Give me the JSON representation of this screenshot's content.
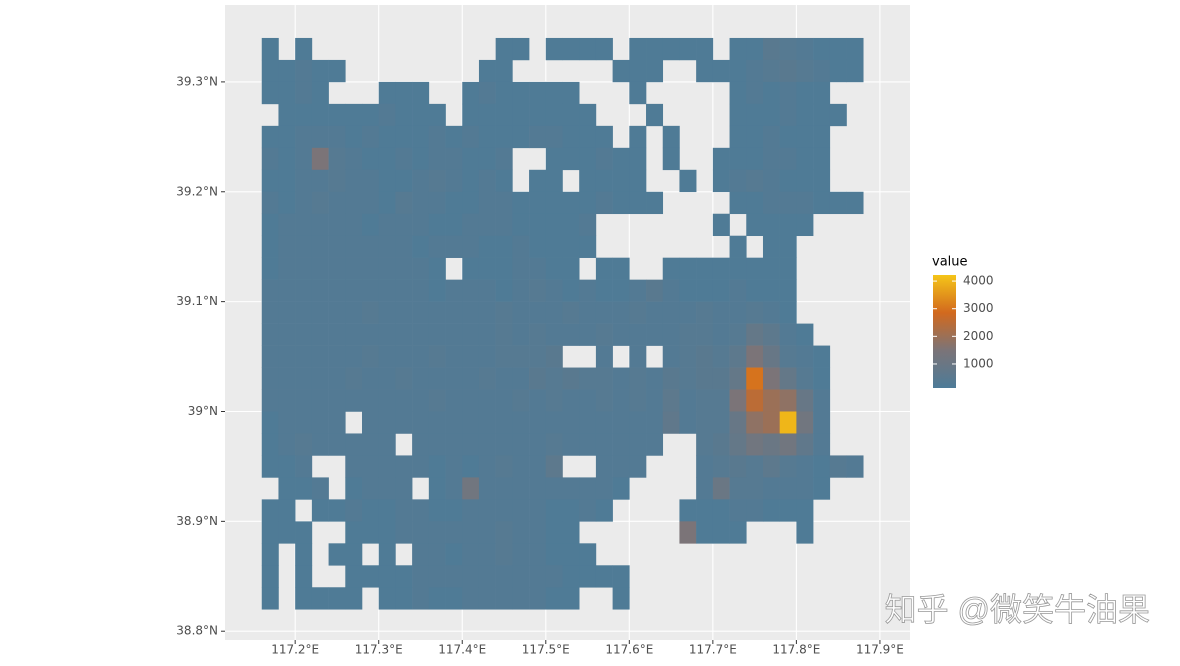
{
  "chart_data": {
    "type": "heatmap",
    "x": [
      117.17,
      117.19,
      117.21,
      117.23,
      117.25,
      117.27,
      117.29,
      117.31,
      117.33,
      117.35,
      117.37,
      117.39,
      117.41,
      117.43,
      117.45,
      117.47,
      117.49,
      117.51,
      117.53,
      117.55,
      117.57,
      117.59,
      117.61,
      117.63,
      117.65,
      117.67,
      117.69,
      117.71,
      117.73,
      117.75,
      117.77,
      117.79,
      117.81,
      117.83,
      117.85,
      117.87
    ],
    "y": [
      39.33,
      39.31,
      39.29,
      39.27,
      39.25,
      39.23,
      39.21,
      39.19,
      39.17,
      39.15,
      39.13,
      39.11,
      39.09,
      39.07,
      39.05,
      39.03,
      39.01,
      38.99,
      38.97,
      38.95,
      38.93,
      38.91,
      38.89,
      38.87,
      38.85,
      38.83
    ],
    "z": [
      [
        200,
        null,
        200,
        null,
        null,
        null,
        null,
        null,
        null,
        null,
        null,
        null,
        null,
        null,
        200,
        200,
        null,
        200,
        200,
        200,
        200,
        null,
        200,
        200,
        200,
        200,
        200,
        null,
        200,
        200,
        500,
        400,
        300,
        200,
        200,
        200
      ],
      [
        200,
        200,
        300,
        200,
        200,
        null,
        null,
        null,
        null,
        null,
        null,
        null,
        null,
        200,
        200,
        null,
        null,
        null,
        null,
        null,
        null,
        200,
        200,
        200,
        null,
        null,
        200,
        200,
        200,
        300,
        400,
        500,
        400,
        300,
        200,
        200
      ],
      [
        200,
        200,
        300,
        200,
        null,
        null,
        null,
        200,
        200,
        200,
        null,
        null,
        200,
        300,
        200,
        200,
        200,
        200,
        200,
        null,
        null,
        null,
        200,
        null,
        null,
        null,
        null,
        null,
        200,
        300,
        200,
        300,
        200,
        200,
        null,
        null
      ],
      [
        null,
        200,
        200,
        200,
        200,
        200,
        200,
        300,
        200,
        200,
        200,
        null,
        200,
        200,
        200,
        200,
        200,
        200,
        200,
        200,
        null,
        null,
        null,
        200,
        null,
        null,
        null,
        null,
        200,
        200,
        200,
        300,
        200,
        200,
        200,
        null
      ],
      [
        200,
        200,
        300,
        300,
        300,
        200,
        300,
        200,
        200,
        200,
        300,
        200,
        300,
        200,
        200,
        200,
        300,
        300,
        200,
        200,
        200,
        null,
        200,
        null,
        200,
        null,
        null,
        null,
        200,
        200,
        300,
        200,
        200,
        200,
        null,
        null
      ],
      [
        300,
        200,
        300,
        1500,
        400,
        300,
        200,
        200,
        300,
        200,
        300,
        300,
        200,
        200,
        300,
        null,
        null,
        200,
        200,
        200,
        300,
        200,
        200,
        null,
        200,
        null,
        null,
        200,
        200,
        200,
        300,
        300,
        200,
        200,
        null,
        null
      ],
      [
        200,
        200,
        300,
        300,
        400,
        300,
        300,
        200,
        200,
        300,
        400,
        300,
        200,
        300,
        200,
        null,
        200,
        200,
        null,
        200,
        200,
        200,
        200,
        null,
        null,
        200,
        null,
        200,
        300,
        400,
        300,
        200,
        200,
        200,
        null,
        null
      ],
      [
        300,
        200,
        300,
        400,
        300,
        300,
        300,
        200,
        400,
        300,
        300,
        200,
        200,
        300,
        300,
        200,
        200,
        200,
        200,
        200,
        300,
        200,
        200,
        200,
        null,
        null,
        null,
        null,
        200,
        200,
        300,
        300,
        300,
        200,
        200,
        200
      ],
      [
        200,
        300,
        300,
        300,
        300,
        300,
        200,
        300,
        300,
        300,
        200,
        200,
        300,
        300,
        300,
        200,
        200,
        200,
        200,
        300,
        null,
        null,
        null,
        null,
        null,
        null,
        null,
        200,
        null,
        200,
        200,
        200,
        200,
        null,
        null,
        null
      ],
      [
        200,
        300,
        300,
        300,
        300,
        300,
        300,
        300,
        300,
        200,
        300,
        300,
        300,
        200,
        200,
        300,
        200,
        200,
        200,
        200,
        null,
        null,
        null,
        null,
        null,
        null,
        null,
        null,
        200,
        null,
        200,
        200,
        null,
        null,
        null,
        null
      ],
      [
        200,
        300,
        300,
        300,
        300,
        300,
        300,
        300,
        300,
        300,
        200,
        null,
        200,
        200,
        200,
        300,
        300,
        200,
        200,
        null,
        200,
        200,
        null,
        null,
        200,
        200,
        200,
        200,
        200,
        200,
        200,
        200,
        null,
        null,
        null,
        null
      ],
      [
        300,
        300,
        300,
        300,
        300,
        300,
        300,
        300,
        300,
        300,
        200,
        300,
        300,
        300,
        200,
        300,
        400,
        300,
        200,
        300,
        200,
        200,
        300,
        500,
        300,
        200,
        200,
        200,
        300,
        200,
        200,
        200,
        null,
        null,
        null,
        null
      ],
      [
        300,
        300,
        300,
        300,
        300,
        300,
        400,
        300,
        300,
        300,
        300,
        300,
        300,
        300,
        400,
        300,
        300,
        300,
        400,
        300,
        300,
        300,
        400,
        300,
        300,
        300,
        400,
        300,
        300,
        400,
        300,
        200,
        null,
        null,
        null,
        null
      ],
      [
        300,
        300,
        300,
        300,
        300,
        300,
        300,
        300,
        300,
        300,
        300,
        300,
        300,
        300,
        400,
        300,
        400,
        300,
        300,
        300,
        400,
        300,
        300,
        300,
        300,
        400,
        400,
        300,
        400,
        800,
        600,
        300,
        200,
        null,
        null,
        null
      ],
      [
        300,
        300,
        300,
        300,
        300,
        300,
        400,
        300,
        300,
        300,
        400,
        300,
        300,
        300,
        400,
        400,
        400,
        500,
        null,
        null,
        300,
        null,
        300,
        null,
        300,
        400,
        500,
        400,
        600,
        1500,
        900,
        400,
        300,
        200,
        null,
        null
      ],
      [
        300,
        300,
        300,
        300,
        300,
        400,
        300,
        300,
        400,
        300,
        300,
        300,
        300,
        400,
        300,
        300,
        500,
        400,
        500,
        400,
        400,
        300,
        400,
        300,
        500,
        400,
        500,
        500,
        800,
        3000,
        1500,
        800,
        400,
        200,
        null,
        null
      ],
      [
        300,
        300,
        300,
        300,
        300,
        300,
        300,
        300,
        300,
        300,
        400,
        300,
        300,
        300,
        300,
        400,
        300,
        400,
        300,
        300,
        400,
        300,
        400,
        300,
        600,
        300,
        400,
        400,
        1500,
        2500,
        2000,
        1800,
        900,
        300,
        null,
        null
      ],
      [
        200,
        300,
        300,
        300,
        300,
        null,
        300,
        300,
        300,
        300,
        300,
        300,
        300,
        300,
        300,
        300,
        300,
        300,
        300,
        300,
        300,
        300,
        300,
        300,
        700,
        300,
        400,
        400,
        900,
        1800,
        2000,
        4000,
        1200,
        300,
        null,
        null
      ],
      [
        200,
        300,
        400,
        300,
        300,
        300,
        300,
        300,
        null,
        300,
        300,
        300,
        300,
        300,
        300,
        300,
        300,
        400,
        300,
        300,
        300,
        300,
        300,
        300,
        null,
        null,
        400,
        500,
        800,
        1200,
        1000,
        1200,
        700,
        300,
        null,
        null
      ],
      [
        200,
        200,
        300,
        null,
        null,
        300,
        300,
        300,
        300,
        300,
        200,
        300,
        200,
        300,
        400,
        300,
        300,
        600,
        null,
        null,
        300,
        300,
        300,
        null,
        null,
        null,
        300,
        400,
        500,
        400,
        600,
        400,
        300,
        200,
        400,
        300
      ],
      [
        null,
        200,
        200,
        300,
        null,
        200,
        300,
        300,
        300,
        null,
        200,
        300,
        1200,
        300,
        300,
        300,
        300,
        300,
        300,
        300,
        300,
        200,
        null,
        null,
        null,
        null,
        300,
        1000,
        400,
        400,
        300,
        300,
        300,
        200,
        null,
        null
      ],
      [
        200,
        200,
        null,
        200,
        200,
        300,
        200,
        200,
        300,
        300,
        200,
        200,
        300,
        300,
        300,
        300,
        300,
        200,
        200,
        300,
        200,
        null,
        null,
        null,
        null,
        200,
        200,
        200,
        300,
        300,
        200,
        200,
        200,
        null,
        null,
        null
      ],
      [
        200,
        200,
        200,
        null,
        null,
        200,
        200,
        200,
        300,
        300,
        300,
        300,
        300,
        300,
        400,
        300,
        300,
        200,
        200,
        null,
        null,
        null,
        null,
        null,
        null,
        1500,
        200,
        200,
        200,
        null,
        null,
        null,
        200,
        null,
        null,
        null
      ],
      [
        200,
        null,
        200,
        null,
        200,
        200,
        null,
        200,
        null,
        300,
        300,
        200,
        300,
        300,
        400,
        300,
        300,
        200,
        200,
        200,
        null,
        null,
        null,
        null,
        null,
        null,
        null,
        null,
        null,
        null,
        null,
        null,
        null,
        null,
        null,
        null
      ],
      [
        200,
        null,
        200,
        null,
        null,
        200,
        200,
        200,
        200,
        300,
        300,
        300,
        300,
        300,
        300,
        300,
        300,
        300,
        200,
        200,
        200,
        200,
        null,
        null,
        null,
        null,
        null,
        null,
        null,
        null,
        null,
        null,
        null,
        null,
        null,
        null
      ],
      [
        200,
        null,
        200,
        200,
        200,
        200,
        null,
        200,
        200,
        300,
        200,
        200,
        300,
        300,
        300,
        300,
        300,
        200,
        200,
        null,
        null,
        200,
        null,
        null,
        null,
        null,
        null,
        null,
        null,
        null,
        null,
        null,
        null,
        null,
        null,
        null
      ]
    ],
    "cell_size": 0.02,
    "xlim": [
      117.116,
      117.936
    ],
    "ylim": [
      38.792,
      39.37
    ],
    "xticks": [
      {
        "value": 117.2,
        "label": "117.2°E"
      },
      {
        "value": 117.3,
        "label": "117.3°E"
      },
      {
        "value": 117.4,
        "label": "117.4°E"
      },
      {
        "value": 117.5,
        "label": "117.5°E"
      },
      {
        "value": 117.6,
        "label": "117.6°E"
      },
      {
        "value": 117.7,
        "label": "117.7°E"
      },
      {
        "value": 117.8,
        "label": "117.8°E"
      },
      {
        "value": 117.9,
        "label": "117.9°E"
      }
    ],
    "yticks": [
      {
        "value": 38.8,
        "label": "38.8°N"
      },
      {
        "value": 38.9,
        "label": "38.9°N"
      },
      {
        "value": 39,
        "label": "39°N"
      },
      {
        "value": 39.1,
        "label": "39.1°N"
      },
      {
        "value": 39.2,
        "label": "39.2°N"
      },
      {
        "value": 39.3,
        "label": "39.3°N"
      }
    ],
    "grid": true,
    "legend_title": "value",
    "colorbar_lim": [
      130,
      4220
    ],
    "colorbar_ticks": [
      1000,
      2000,
      3000,
      4000
    ],
    "colors": [
      "#4d7b98",
      "#7b7478",
      "#d2691e",
      "#f5c518"
    ]
  },
  "watermark": "知乎 @微笑牛油果"
}
